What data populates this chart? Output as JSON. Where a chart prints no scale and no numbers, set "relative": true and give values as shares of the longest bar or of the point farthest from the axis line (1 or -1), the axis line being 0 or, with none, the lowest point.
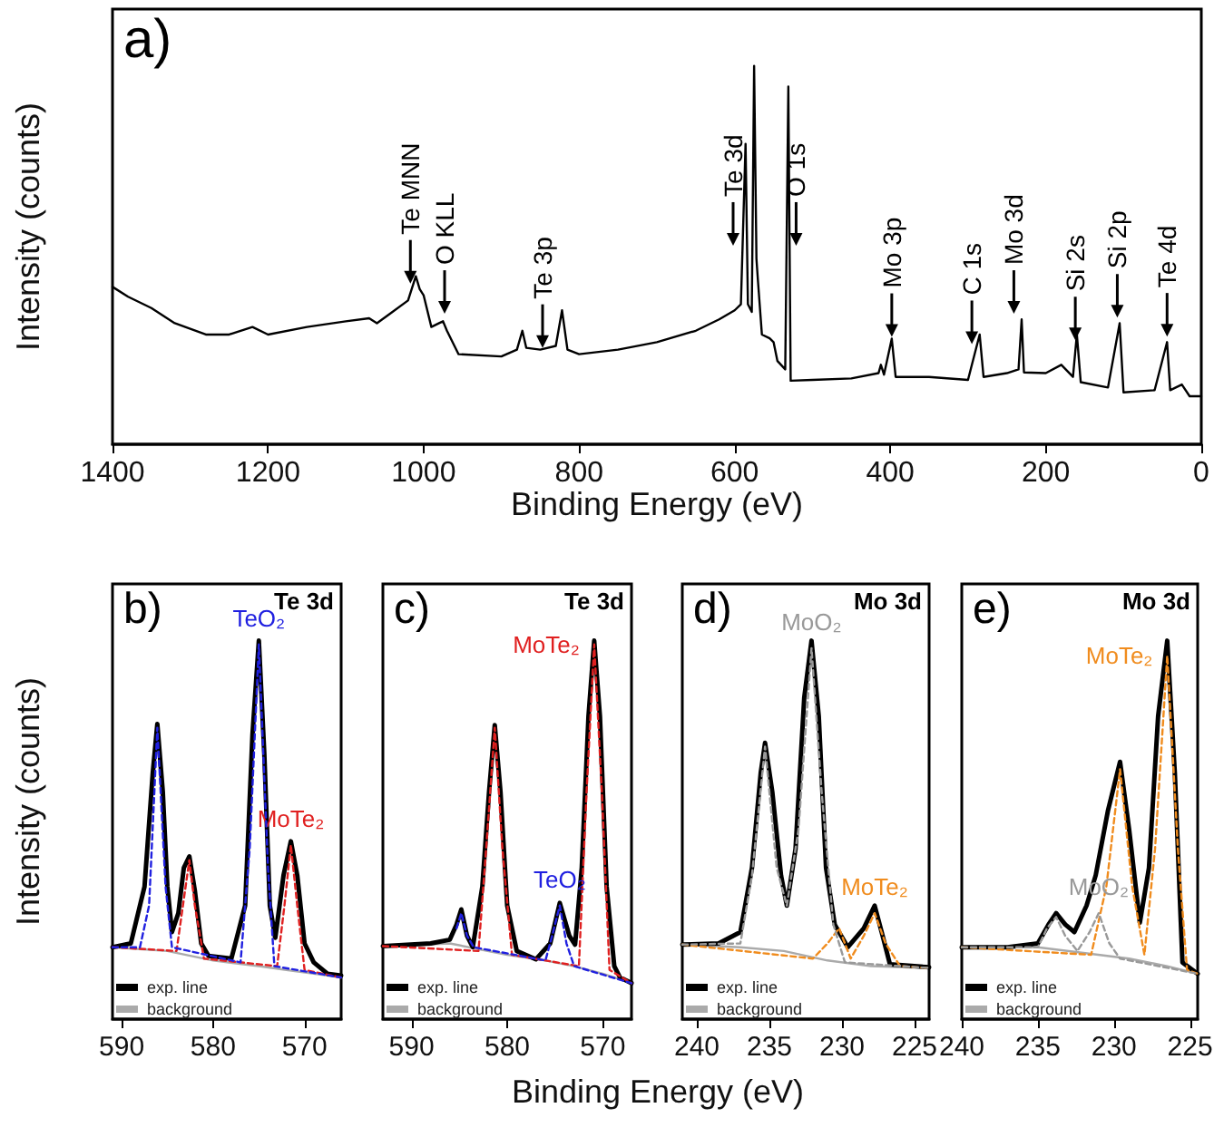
{
  "chart_data": [
    {
      "type": "line",
      "relative": true,
      "xlabel": "Binding Energy (eV)",
      "ylabel": "Intensity (counts)",
      "xlim": [
        1400,
        0
      ],
      "xticks": [
        1400,
        1200,
        1000,
        800,
        600,
        400,
        200,
        0
      ],
      "tick_labels": "x",
      "annotations": [
        "a)",
        {
          "text": "Te MNN",
          "x": 1017,
          "y": 0.42
        },
        {
          "text": "O KLL",
          "x": 973,
          "y": 0.34
        },
        {
          "text": "Te 3p",
          "x": 847,
          "y": 0.25
        },
        {
          "text": "Te 3d",
          "x": 602,
          "y": 0.52
        },
        {
          "text": "O 1s",
          "x": 521,
          "y": 0.52
        },
        {
          "text": "Mo 3p",
          "x": 398,
          "y": 0.279
        },
        {
          "text": "C 1s",
          "x": 295,
          "y": 0.26
        },
        {
          "text": "Mo 3d",
          "x": 241,
          "y": 0.34
        },
        {
          "text": "Si 2s",
          "x": 162,
          "y": 0.27
        },
        {
          "text": "Si 2p",
          "x": 108,
          "y": 0.33
        },
        {
          "text": "Te 4d",
          "x": 44,
          "y": 0.28
        }
      ],
      "series": [
        {
          "color": "#000000",
          "x": [
            1400,
            1380,
            1350,
            1320,
            1280,
            1250,
            1220,
            1200,
            1150,
            1100,
            1070,
            1060,
            1040,
            1020,
            1010,
            1005,
            1000,
            990,
            980,
            975,
            970,
            955,
            900,
            880,
            873,
            868,
            850,
            830,
            822,
            815,
            800,
            750,
            700,
            650,
            620,
            600,
            592,
            586,
            583,
            578,
            575,
            572,
            570,
            565,
            555,
            550,
            545,
            535,
            531,
            528,
            500,
            450,
            415,
            412,
            408,
            398,
            393,
            350,
            300,
            285,
            280,
            250,
            235,
            231,
            228,
            200,
            180,
            165,
            160,
            155,
            120,
            105,
            100,
            60,
            44,
            40,
            25,
            15,
            0
          ],
          "values": [
            0.416,
            0.39,
            0.36,
            0.32,
            0.29,
            0.29,
            0.31,
            0.29,
            0.31,
            0.325,
            0.333,
            0.32,
            0.35,
            0.38,
            0.444,
            0.41,
            0.394,
            0.31,
            0.32,
            0.325,
            0.3,
            0.238,
            0.232,
            0.25,
            0.3,
            0.255,
            0.25,
            0.26,
            0.354,
            0.25,
            0.238,
            0.25,
            0.27,
            0.3,
            0.33,
            0.354,
            0.37,
            0.794,
            0.37,
            0.35,
            1.0,
            0.49,
            0.43,
            0.29,
            0.28,
            0.27,
            0.22,
            0.198,
            0.945,
            0.168,
            0.17,
            0.174,
            0.188,
            0.21,
            0.184,
            0.279,
            0.178,
            0.178,
            0.17,
            0.29,
            0.178,
            0.188,
            0.198,
            0.33,
            0.19,
            0.188,
            0.21,
            0.178,
            0.29,
            0.164,
            0.15,
            0.32,
            0.137,
            0.143,
            0.27,
            0.143,
            0.158,
            0.127,
            0.127
          ]
        }
      ]
    },
    {
      "type": "line",
      "relative": true,
      "xlabel": "Binding Energy (eV)",
      "ylabel": "Intensity (counts)",
      "xlim": [
        591,
        566
      ],
      "xticks": [
        590,
        580,
        570
      ],
      "tick_labels": "x",
      "legend": "bottom left",
      "annotations": [
        "b)",
        "Te 3d"
      ],
      "series": [
        {
          "name": "exp. line",
          "color": "#000000",
          "x": [
            591,
            589,
            587.5,
            586.6,
            586.1,
            585.5,
            585,
            584.5,
            583.8,
            583.2,
            582.6,
            582,
            581.3,
            580.5,
            578,
            576.5,
            575.7,
            575,
            574.4,
            573.8,
            573.2,
            572.3,
            571.5,
            570.8,
            570,
            569,
            567.5,
            566
          ],
          "values": [
            0.19,
            0.2,
            0.35,
            0.65,
            0.78,
            0.6,
            0.35,
            0.23,
            0.28,
            0.4,
            0.43,
            0.34,
            0.2,
            0.167,
            0.16,
            0.3,
            0.75,
            1.0,
            0.7,
            0.3,
            0.215,
            0.38,
            0.47,
            0.38,
            0.2,
            0.15,
            0.12,
            0.115
          ]
        },
        {
          "name": "background",
          "color": "#aaaaaa",
          "x": [
            591,
            585,
            580,
            575,
            572,
            569,
            566
          ],
          "values": [
            0.19,
            0.18,
            0.155,
            0.14,
            0.13,
            0.12,
            0.11
          ]
        },
        {
          "name": "TeO₂",
          "color": "#2020e0",
          "line_style": "dashed",
          "x": [
            591,
            588,
            587,
            586.1,
            585.2,
            584.5,
            577,
            576,
            575,
            574,
            573.3,
            566
          ],
          "values": [
            0.19,
            0.19,
            0.3,
            0.77,
            0.35,
            0.19,
            0.15,
            0.45,
            0.99,
            0.4,
            0.14,
            0.11
          ]
        },
        {
          "name": "MoTe₂",
          "color": "#e02020",
          "line_style": "dashed",
          "x": [
            591,
            584,
            583.3,
            582.6,
            582,
            581,
            573,
            572.2,
            571.5,
            570.8,
            570,
            566
          ],
          "values": [
            0.19,
            0.18,
            0.3,
            0.42,
            0.3,
            0.16,
            0.14,
            0.3,
            0.46,
            0.3,
            0.13,
            0.11
          ]
        }
      ]
    },
    {
      "type": "line",
      "relative": true,
      "xlim": [
        593,
        567
      ],
      "xticks": [
        590,
        580,
        570
      ],
      "tick_labels": "x",
      "legend": "bottom left",
      "annotations": [
        "c)",
        "Te 3d"
      ],
      "series": [
        {
          "name": "exp. line",
          "color": "#000000",
          "x": [
            593,
            588,
            586,
            585.3,
            584.8,
            584.2,
            583.6,
            582.6,
            581.9,
            581.3,
            580.7,
            580,
            579,
            577,
            575.5,
            574.5,
            573.5,
            572.9,
            572.2,
            571.5,
            570.9,
            570.3,
            569.6,
            568.8,
            568.2,
            567
          ],
          "values": [
            0.193,
            0.2,
            0.21,
            0.25,
            0.29,
            0.22,
            0.19,
            0.35,
            0.6,
            0.777,
            0.6,
            0.3,
            0.18,
            0.158,
            0.2,
            0.307,
            0.22,
            0.197,
            0.4,
            0.8,
            1.0,
            0.8,
            0.35,
            0.14,
            0.11,
            0.095
          ]
        },
        {
          "name": "background",
          "color": "#aaaaaa",
          "x": [
            593,
            586,
            580,
            576,
            573,
            570,
            567
          ],
          "values": [
            0.193,
            0.2,
            0.17,
            0.155,
            0.14,
            0.12,
            0.095
          ]
        },
        {
          "name": "TeO₂",
          "color": "#2020e0",
          "line_style": "dashed",
          "x": [
            585.3,
            584.8,
            584.2,
            583.5,
            576,
            575.3,
            574.5,
            573.8,
            573,
            567
          ],
          "values": [
            0.24,
            0.28,
            0.22,
            0.19,
            0.155,
            0.22,
            0.3,
            0.2,
            0.14,
            0.095
          ]
        },
        {
          "name": "MoTe₂",
          "color": "#e02020",
          "line_style": "dashed",
          "x": [
            593,
            583,
            582.2,
            581.3,
            580.5,
            579.5,
            572.5,
            571.7,
            570.9,
            570.1,
            569.3,
            567
          ],
          "values": [
            0.193,
            0.18,
            0.45,
            0.77,
            0.45,
            0.17,
            0.14,
            0.6,
            0.99,
            0.6,
            0.13,
            0.095
          ]
        }
      ]
    },
    {
      "type": "line",
      "relative": true,
      "xlim": [
        241,
        224
      ],
      "xticks": [
        240,
        235,
        230,
        225
      ],
      "tick_labels": "x",
      "legend": "bottom left",
      "annotations": [
        "d)",
        "Mo 3d"
      ],
      "series": [
        {
          "name": "exp. line",
          "color": "#000000",
          "x": [
            241,
            238.5,
            237,
            236.2,
            235.6,
            235.3,
            234.8,
            234.2,
            233.8,
            233.2,
            232.6,
            232.1,
            231.6,
            231.1,
            230.5,
            229.6,
            228.5,
            227.75,
            227.2,
            226.7,
            224
          ],
          "values": [
            0.197,
            0.2,
            0.23,
            0.4,
            0.65,
            0.73,
            0.6,
            0.38,
            0.3,
            0.45,
            0.85,
            1.0,
            0.8,
            0.4,
            0.25,
            0.19,
            0.24,
            0.3,
            0.22,
            0.145,
            0.137
          ]
        },
        {
          "name": "background",
          "color": "#aaaaaa",
          "x": [
            241,
            237,
            234,
            231,
            228,
            224
          ],
          "values": [
            0.197,
            0.19,
            0.18,
            0.155,
            0.14,
            0.135
          ]
        },
        {
          "name": "MoO₂",
          "color": "#999999",
          "line_style": "dashed",
          "x": [
            241,
            237,
            236.2,
            235.3,
            234.5,
            233.8,
            233,
            232.1,
            231.4,
            230.6,
            229.8,
            224
          ],
          "values": [
            0.197,
            0.2,
            0.38,
            0.72,
            0.4,
            0.3,
            0.5,
            0.98,
            0.6,
            0.25,
            0.15,
            0.135
          ]
        },
        {
          "name": "MoTe₂",
          "color": "#f08c1e",
          "line_style": "dashed",
          "x": [
            241,
            232,
            231,
            230.2,
            229.4,
            228.5,
            227.75,
            227,
            226,
            224
          ],
          "values": [
            0.197,
            0.16,
            0.2,
            0.24,
            0.16,
            0.22,
            0.28,
            0.2,
            0.14,
            0.135
          ]
        }
      ]
    },
    {
      "type": "line",
      "relative": true,
      "xlim": [
        240,
        224.5
      ],
      "xticks": [
        240,
        235,
        230,
        225
      ],
      "tick_labels": "x",
      "legend": "bottom left",
      "annotations": [
        "e)",
        "Mo 3d"
      ],
      "series": [
        {
          "name": "exp. line",
          "color": "#000000",
          "x": [
            240,
            237,
            235,
            234.3,
            233.8,
            233.2,
            232.6,
            231.8,
            231.2,
            230.4,
            229.6,
            229,
            228.3,
            227.7,
            227.1,
            226.5,
            226,
            225.5,
            224.5
          ],
          "values": [
            0.19,
            0.19,
            0.2,
            0.25,
            0.28,
            0.25,
            0.23,
            0.3,
            0.38,
            0.55,
            0.68,
            0.5,
            0.255,
            0.4,
            0.8,
            1.0,
            0.65,
            0.15,
            0.12
          ]
        },
        {
          "name": "background",
          "color": "#aaaaaa",
          "x": [
            240,
            235,
            232,
            229,
            226.5,
            224.5
          ],
          "values": [
            0.19,
            0.19,
            0.175,
            0.16,
            0.14,
            0.12
          ]
        },
        {
          "name": "MoO₂",
          "color": "#999999",
          "line_style": "dashed",
          "x": [
            240,
            235,
            234.4,
            233.8,
            233.2,
            232.4,
            231.6,
            231,
            230.3,
            229.6,
            224.5
          ],
          "values": [
            0.19,
            0.19,
            0.24,
            0.27,
            0.22,
            0.18,
            0.23,
            0.28,
            0.2,
            0.16,
            0.12
          ]
        },
        {
          "name": "MoTe₂",
          "color": "#f08c1e",
          "line_style": "dashed",
          "x": [
            240,
            231.5,
            230.5,
            229.6,
            228.8,
            228,
            227.3,
            226.5,
            225.8,
            225.2,
            224.5
          ],
          "values": [
            0.19,
            0.17,
            0.35,
            0.66,
            0.35,
            0.17,
            0.45,
            0.96,
            0.45,
            0.13,
            0.12
          ]
        }
      ]
    }
  ]
}
